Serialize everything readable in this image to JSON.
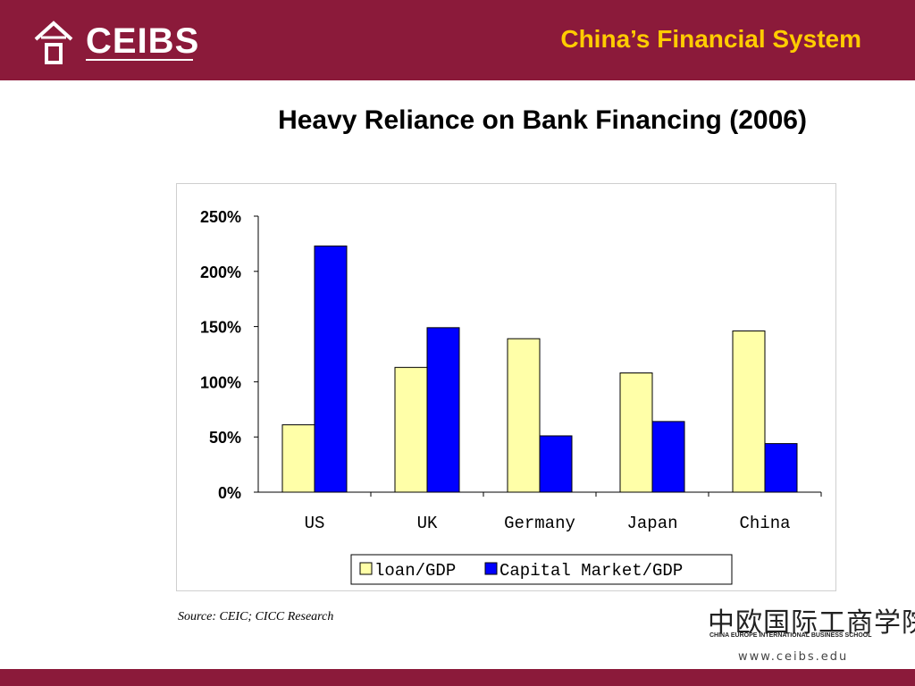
{
  "header": {
    "logo_text": "CEIBS",
    "title": "China’s Financial System"
  },
  "chart_data": {
    "type": "bar",
    "title": "Heavy Reliance on Bank Financing (2006)",
    "categories": [
      "US",
      "UK",
      "Germany",
      "Japan",
      "China"
    ],
    "series": [
      {
        "name": "loan/GDP",
        "color": "#ffffa8",
        "values": [
          61,
          113,
          139,
          108,
          146
        ]
      },
      {
        "name": "Capital Market/GDP",
        "color": "#0000ff",
        "values": [
          223,
          149,
          51,
          64,
          44
        ]
      }
    ],
    "ylim": [
      0,
      250
    ],
    "yticks": [
      "0%",
      "50%",
      "100%",
      "150%",
      "200%",
      "250%"
    ],
    "legend_position": "bottom",
    "grid": false
  },
  "source": "Source: CEIC; CICC Research",
  "school": {
    "chinese_name": "中欧国际工商学院",
    "english_name": "China Europe International Business School",
    "website": "www.ceibs.edu"
  }
}
